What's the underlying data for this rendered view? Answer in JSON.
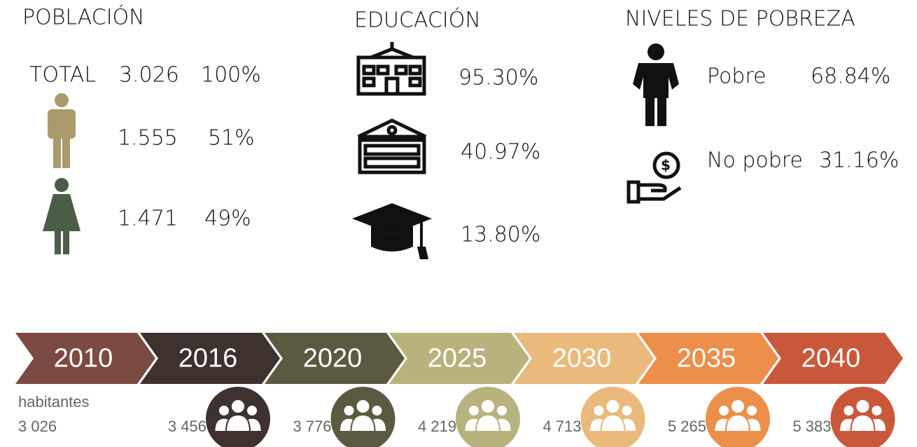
{
  "poblacion": {
    "title": "POBLACIÓN",
    "total": {
      "label": "TOTAL",
      "value": "3.026",
      "pct": "100%"
    },
    "hombres": {
      "value": "1.555",
      "pct": "51%"
    },
    "mujeres": {
      "value": "1.471",
      "pct": "49%"
    }
  },
  "educacion": {
    "title": "EDUCACIÓN",
    "items": [
      "95.30%",
      "40.97%",
      "13.80%"
    ]
  },
  "pobreza": {
    "title": "NIVELES DE POBREZA",
    "items": [
      {
        "label": "Pobre",
        "value": "68.84%"
      },
      {
        "label": "No pobre",
        "value": "31.16%"
      }
    ]
  },
  "timeline": {
    "label": "habitantes",
    "items": [
      {
        "year": "2010",
        "population": "3 026",
        "color": "#7b4b43"
      },
      {
        "year": "2016",
        "population": "3 456",
        "color": "#3e322e"
      },
      {
        "year": "2020",
        "population": "3 776",
        "color": "#5b5a41"
      },
      {
        "year": "2025",
        "population": "4 219",
        "color": "#b8b27d"
      },
      {
        "year": "2030",
        "population": "4 713",
        "color": "#e9ba7b"
      },
      {
        "year": "2035",
        "population": "5 265",
        "color": "#ec8f4a"
      },
      {
        "year": "2040",
        "population": "5 383",
        "color": "#c9583b"
      }
    ]
  }
}
